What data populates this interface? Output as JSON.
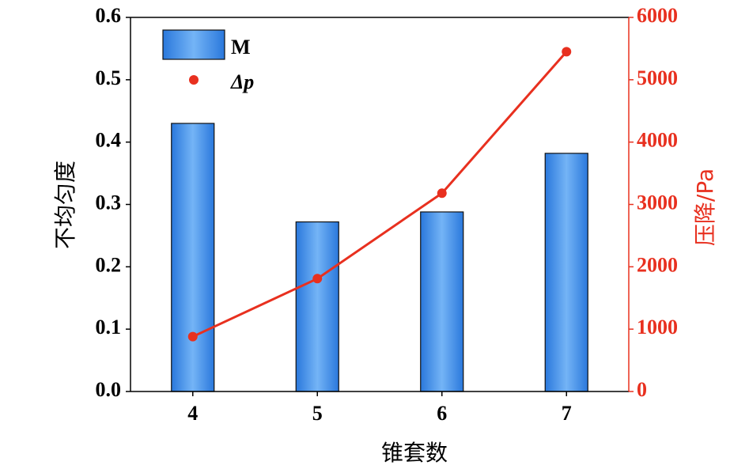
{
  "chart_data": {
    "type": "bar_line",
    "categories": [
      "4",
      "5",
      "6",
      "7"
    ],
    "x_label": "锥套数",
    "y_label": "不均匀度",
    "y2_label": "压降/Pa",
    "series": [
      {
        "name": "M",
        "type": "bar",
        "color": "#2a78dc",
        "values": [
          0.43,
          0.272,
          0.288,
          0.382
        ]
      },
      {
        "name": "Δp",
        "type": "line",
        "axis": "y2",
        "color": "#e8301f",
        "values": [
          880,
          1810,
          3180,
          5450
        ]
      }
    ],
    "ylim": [
      0,
      0.6
    ],
    "yticks": [
      {
        "value": 0,
        "label": "0.0"
      },
      0.1,
      0.2,
      0.3,
      0.4,
      0.5,
      0.6
    ],
    "y2lim": [
      0,
      6000
    ],
    "y2ticks": [
      0,
      1000,
      2000,
      3000,
      4000,
      5000,
      6000
    ],
    "legend": "upper left"
  }
}
